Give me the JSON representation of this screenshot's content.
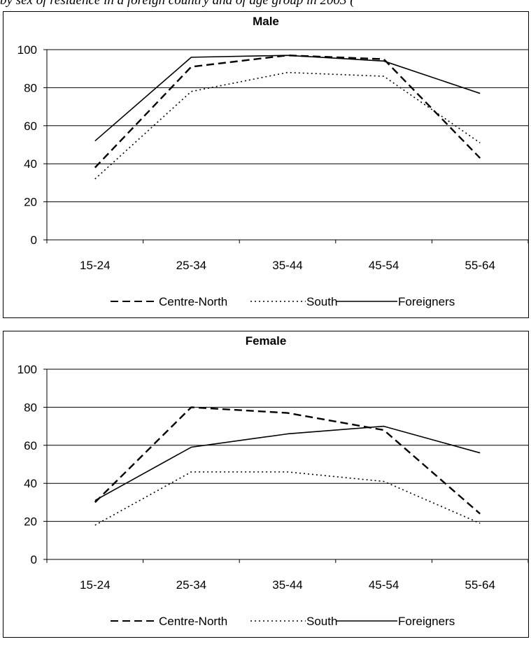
{
  "caption": "by sex of residence in a foreign country and of age group in 2003 (",
  "chart_data": [
    {
      "type": "line",
      "title": "Male",
      "categories": [
        "15-24",
        "25-34",
        "35-44",
        "45-54",
        "55-64"
      ],
      "ylim": [
        0,
        100
      ],
      "yticks": [
        0,
        20,
        40,
        60,
        80,
        100
      ],
      "grid": true,
      "legend_position": "bottom",
      "series": [
        {
          "name": "Centre-North",
          "style": "dashed",
          "values": [
            38,
            91,
            97,
            95,
            43
          ]
        },
        {
          "name": "South",
          "style": "dotted",
          "values": [
            32,
            78,
            88,
            86,
            51
          ]
        },
        {
          "name": "Foreigners",
          "style": "solid",
          "values": [
            52,
            96,
            97,
            94,
            77
          ]
        }
      ]
    },
    {
      "type": "line",
      "title": "Female",
      "categories": [
        "15-24",
        "25-34",
        "35-44",
        "45-54",
        "55-64"
      ],
      "ylim": [
        0,
        100
      ],
      "yticks": [
        0,
        20,
        40,
        60,
        80,
        100
      ],
      "grid": true,
      "legend_position": "bottom",
      "series": [
        {
          "name": "Centre-North",
          "style": "dashed",
          "values": [
            30,
            80,
            77,
            68,
            24
          ]
        },
        {
          "name": "South",
          "style": "dotted",
          "values": [
            18,
            46,
            46,
            41,
            19
          ]
        },
        {
          "name": "Foreigners",
          "style": "solid",
          "values": [
            31,
            59,
            66,
            70,
            56
          ]
        }
      ]
    }
  ]
}
